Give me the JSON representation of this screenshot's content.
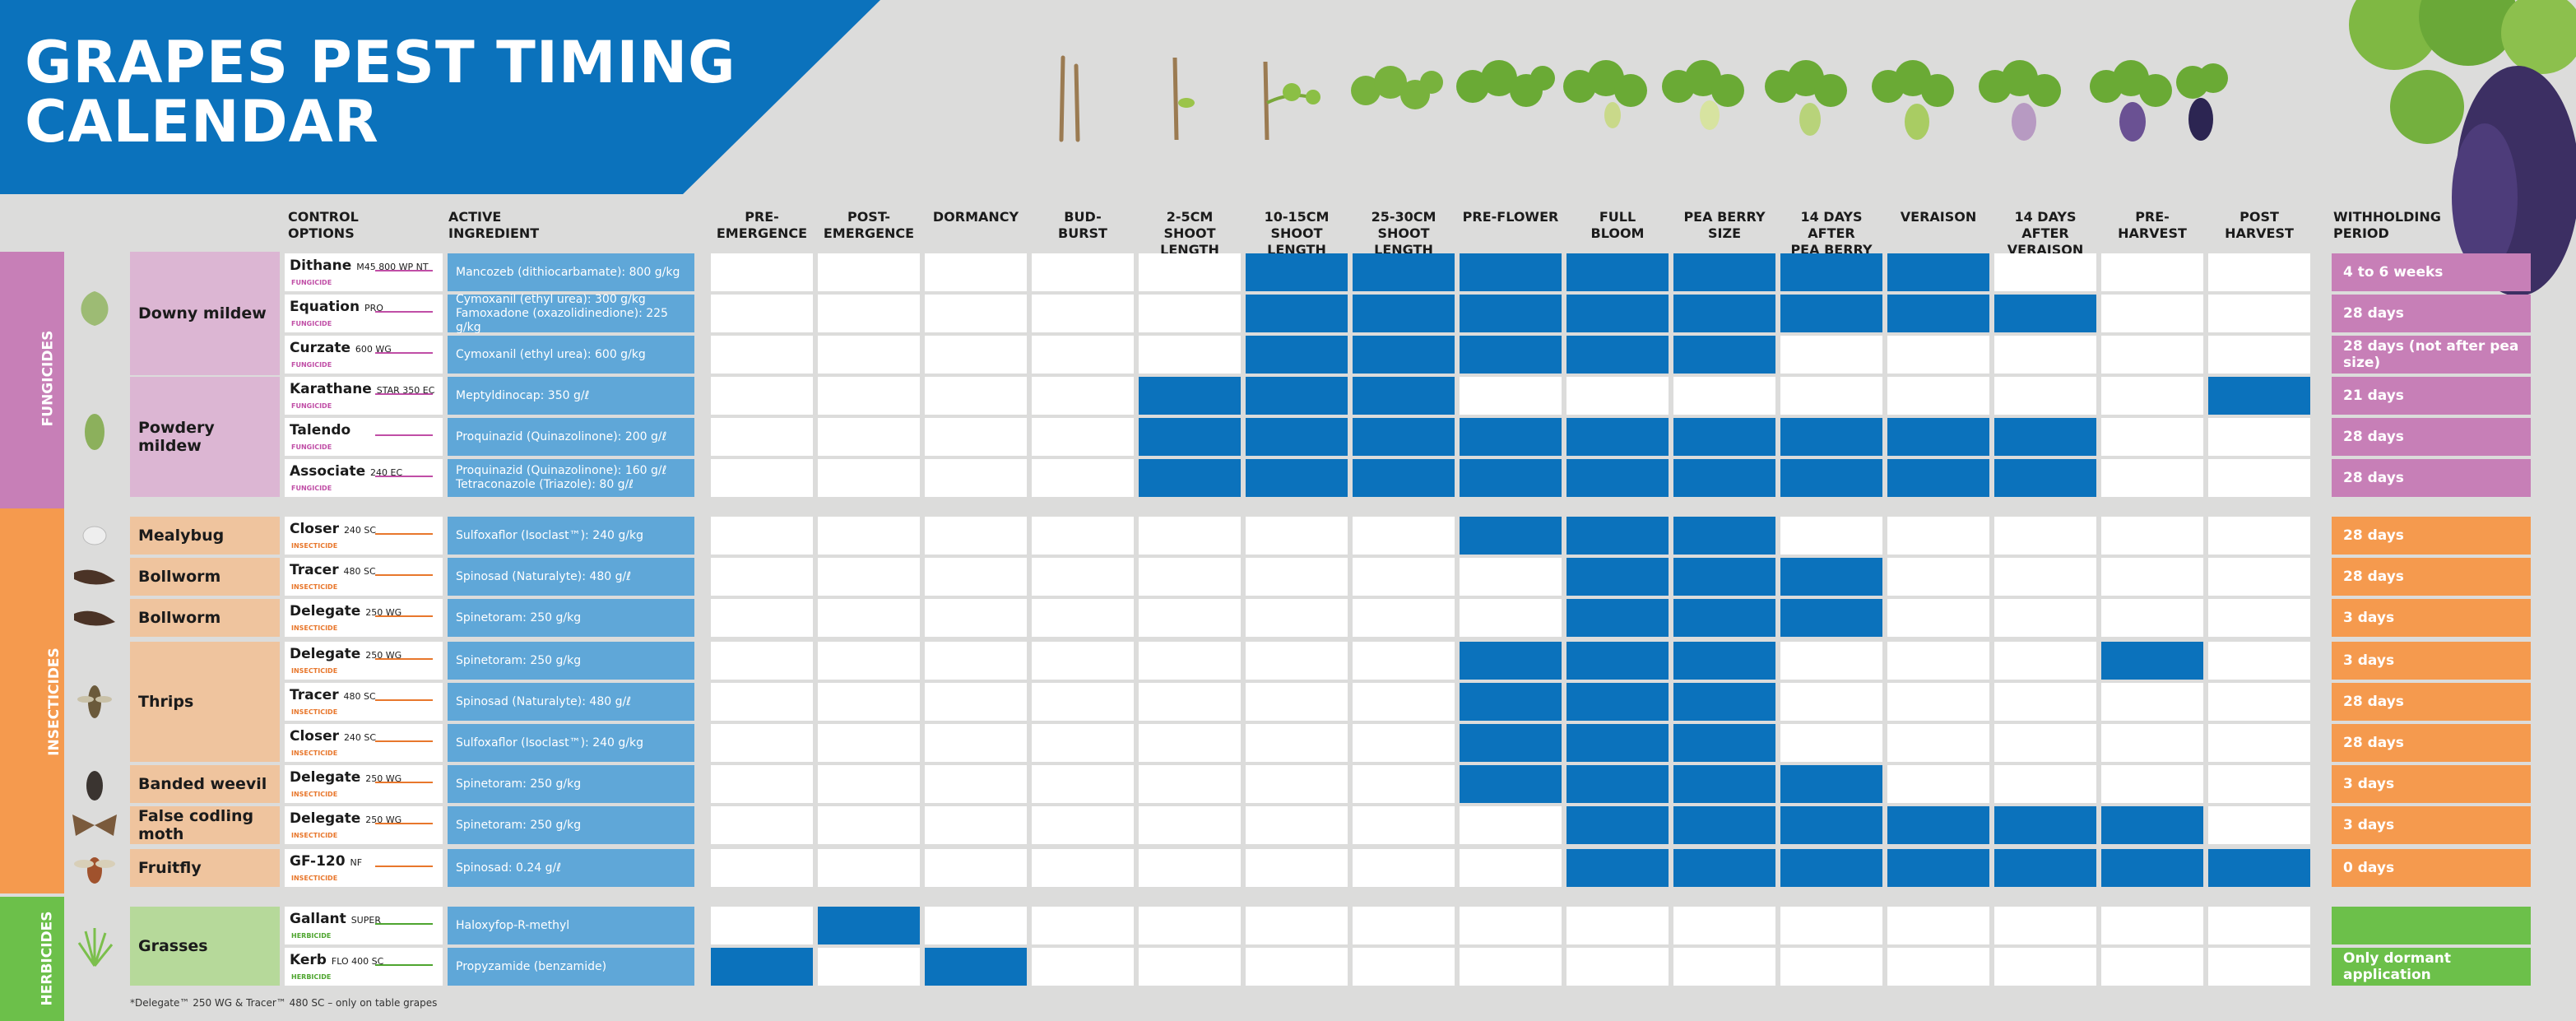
{
  "title_line1": "GRAPES PEST TIMING",
  "title_line2": "CALENDAR",
  "headers": {
    "control": [
      "CONTROL",
      "OPTIONS"
    ],
    "active": [
      "ACTIVE",
      "INGREDIENT"
    ],
    "withholding": [
      "WITHHOLDING",
      "PERIOD"
    ]
  },
  "stages": [
    [
      "PRE-",
      "EMERGENCE"
    ],
    [
      "POST-",
      "EMERGENCE"
    ],
    [
      "DORMANCY",
      ""
    ],
    [
      "BUD-",
      "BURST"
    ],
    [
      "2-5cm",
      "SHOOT LENGTH"
    ],
    [
      "10-15cm",
      "SHOOT LENGTH"
    ],
    [
      "25-30cm",
      "SHOOT LENGTH"
    ],
    [
      "PRE-FLOWER",
      ""
    ],
    [
      "FULL",
      "BLOOM"
    ],
    [
      "PEA BERRY",
      "SIZE"
    ],
    [
      "14 DAYS AFTER",
      "PEA BERRY"
    ],
    [
      "VERAISON",
      ""
    ],
    [
      "14 DAYS AFTER",
      "VERAISON"
    ],
    [
      "PRE-",
      "HARVEST"
    ],
    [
      "POST",
      "HARVEST"
    ]
  ],
  "categories": {
    "fungicides": "FUNGICIDES",
    "insecticides": "INSECTICIDES",
    "herbicides": "HERBICIDES"
  },
  "colors": {
    "fungicide_band": "#c77fb7",
    "fungicide_pest": "#dcb6d3",
    "insecticide_band": "#f59a4e",
    "insecticide_pest": "#efc49e",
    "herbicide_band": "#6cc04a",
    "herbicide_pest": "#b6d99a",
    "brand_blue": "#0b72bc",
    "ingredient_blue": "#5fa7d8"
  },
  "pests": {
    "downy": "Downy mildew",
    "powdery": "Powdery mildew",
    "mealybug": "Mealybug",
    "bollworm1": "Bollworm",
    "bollworm2": "Bollworm",
    "thrips": "Thrips",
    "banded": "Banded weevil",
    "fcm": "False codling moth",
    "fruitfly": "Fruitfly",
    "grasses": "Grasses"
  },
  "rows": [
    {
      "product": "Dithane",
      "suffix": "M45 800 WP NT",
      "type": "FUNGICIDE",
      "ingredient": [
        "Mancozeb (dithiocarbamate): 800 g/kg"
      ],
      "stages": [
        0,
        0,
        0,
        0,
        0,
        1,
        1,
        1,
        1,
        1,
        1,
        1,
        0,
        0,
        0
      ],
      "withholding": "4 to 6 weeks"
    },
    {
      "product": "Equation",
      "suffix": "PRO",
      "type": "FUNGICIDE",
      "ingredient": [
        "Cymoxanil (ethyl urea): 300 g/kg",
        "Famoxadone (oxazolidinedione): 225 g/kg"
      ],
      "stages": [
        0,
        0,
        0,
        0,
        0,
        1,
        1,
        1,
        1,
        1,
        1,
        1,
        1,
        0,
        0
      ],
      "withholding": "28 days"
    },
    {
      "product": "Curzate",
      "suffix": "600 WG",
      "type": "FUNGICIDE",
      "ingredient": [
        "Cymoxanil (ethyl urea): 600 g/kg"
      ],
      "stages": [
        0,
        0,
        0,
        0,
        0,
        1,
        1,
        1,
        1,
        1,
        0,
        0,
        0,
        0,
        0
      ],
      "withholding": "28 days (not after pea size)"
    },
    {
      "product": "Karathane",
      "suffix": "STAR 350 EC",
      "type": "FUNGICIDE",
      "ingredient": [
        "Meptyldinocap: 350 g/ℓ"
      ],
      "stages": [
        0,
        0,
        0,
        0,
        1,
        1,
        1,
        0,
        0,
        0,
        0,
        0,
        0,
        0,
        1
      ],
      "withholding": "21 days"
    },
    {
      "product": "Talendo",
      "suffix": "",
      "type": "FUNGICIDE",
      "ingredient": [
        "Proquinazid (Quinazolinone): 200 g/ℓ"
      ],
      "stages": [
        0,
        0,
        0,
        0,
        1,
        1,
        1,
        1,
        1,
        1,
        1,
        1,
        1,
        0,
        0
      ],
      "withholding": "28 days"
    },
    {
      "product": "Associate",
      "suffix": "240 EC",
      "type": "FUNGICIDE",
      "ingredient": [
        "Proquinazid (Quinazolinone): 160 g/ℓ",
        "Tetraconazole (Triazole): 80 g/ℓ"
      ],
      "stages": [
        0,
        0,
        0,
        0,
        1,
        1,
        1,
        1,
        1,
        1,
        1,
        1,
        1,
        0,
        0
      ],
      "withholding": "28 days"
    },
    {
      "product": "Closer",
      "suffix": "240 SC",
      "type": "INSECTICIDE",
      "ingredient": [
        "Sulfoxaflor (Isoclast™): 240 g/kg"
      ],
      "stages": [
        0,
        0,
        0,
        0,
        0,
        0,
        0,
        1,
        1,
        1,
        0,
        0,
        0,
        0,
        0
      ],
      "withholding": "28 days"
    },
    {
      "product": "Tracer",
      "suffix": "480 SC",
      "type": "INSECTICIDE",
      "ingredient": [
        "Spinosad (Naturalyte): 480 g/ℓ"
      ],
      "stages": [
        0,
        0,
        0,
        0,
        0,
        0,
        0,
        0,
        1,
        1,
        1,
        0,
        0,
        0,
        0
      ],
      "withholding": "28 days"
    },
    {
      "product": "Delegate",
      "suffix": "250 WG",
      "type": "INSECTICIDE",
      "ingredient": [
        "Spinetoram: 250 g/kg"
      ],
      "stages": [
        0,
        0,
        0,
        0,
        0,
        0,
        0,
        0,
        1,
        1,
        1,
        0,
        0,
        0,
        0
      ],
      "withholding": "3 days"
    },
    {
      "product": "Delegate",
      "suffix": "250 WG",
      "type": "INSECTICIDE",
      "ingredient": [
        "Spinetoram: 250 g/kg"
      ],
      "stages": [
        0,
        0,
        0,
        0,
        0,
        0,
        0,
        1,
        1,
        1,
        0,
        0,
        0,
        1,
        0
      ],
      "withholding": "3 days"
    },
    {
      "product": "Tracer",
      "suffix": "480 SC",
      "type": "INSECTICIDE",
      "ingredient": [
        "Spinosad (Naturalyte): 480 g/ℓ"
      ],
      "stages": [
        0,
        0,
        0,
        0,
        0,
        0,
        0,
        1,
        1,
        1,
        0,
        0,
        0,
        0,
        0
      ],
      "withholding": "28 days"
    },
    {
      "product": "Closer",
      "suffix": "240 SC",
      "type": "INSECTICIDE",
      "ingredient": [
        "Sulfoxaflor (Isoclast™): 240 g/kg"
      ],
      "stages": [
        0,
        0,
        0,
        0,
        0,
        0,
        0,
        1,
        1,
        1,
        0,
        0,
        0,
        0,
        0
      ],
      "withholding": "28 days"
    },
    {
      "product": "Delegate",
      "suffix": "250 WG",
      "type": "INSECTICIDE",
      "ingredient": [
        "Spinetoram: 250 g/kg"
      ],
      "stages": [
        0,
        0,
        0,
        0,
        0,
        0,
        0,
        1,
        1,
        1,
        1,
        0,
        0,
        0,
        0
      ],
      "withholding": "3 days"
    },
    {
      "product": "Delegate",
      "suffix": "250 WG",
      "type": "INSECTICIDE",
      "ingredient": [
        "Spinetoram: 250 g/kg"
      ],
      "stages": [
        0,
        0,
        0,
        0,
        0,
        0,
        0,
        0,
        1,
        1,
        1,
        1,
        1,
        1,
        0
      ],
      "withholding": "3 days"
    },
    {
      "product": "GF-120",
      "suffix": "NF",
      "type": "INSECTICIDE",
      "ingredient": [
        "Spinosad: 0.24 g/ℓ"
      ],
      "stages": [
        0,
        0,
        0,
        0,
        0,
        0,
        0,
        0,
        1,
        1,
        1,
        1,
        1,
        1,
        1
      ],
      "withholding": "0 days"
    },
    {
      "product": "Gallant",
      "suffix": "SUPER",
      "type": "HERBICIDE",
      "ingredient": [
        "Haloxyfop-R-methyl"
      ],
      "stages": [
        0,
        1,
        0,
        0,
        0,
        0,
        0,
        0,
        0,
        0,
        0,
        0,
        0,
        0,
        0
      ],
      "withholding": ""
    },
    {
      "product": "Kerb",
      "suffix": "FLO 400 SC",
      "type": "HERBICIDE",
      "ingredient": [
        "Propyzamide (benzamide)"
      ],
      "stages": [
        1,
        0,
        1,
        0,
        0,
        0,
        0,
        0,
        0,
        0,
        0,
        0,
        0,
        0,
        0
      ],
      "withholding": "Only dormant application"
    }
  ],
  "footnote": "*Delegate™ 250 WG & Tracer™ 480 SC – only on table grapes"
}
